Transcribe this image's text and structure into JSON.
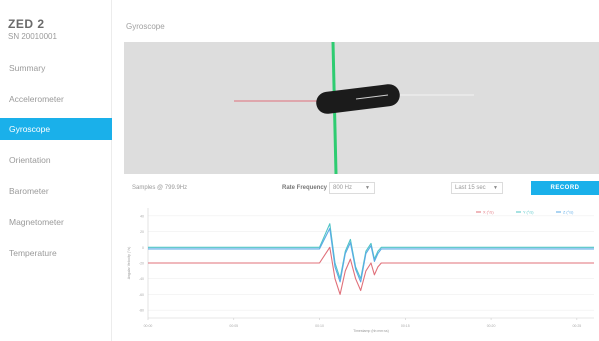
{
  "device": {
    "name": "ZED 2",
    "serial": "SN 20010001"
  },
  "nav": {
    "items": [
      {
        "label": "Summary"
      },
      {
        "label": "Accelerometer"
      },
      {
        "label": "Gyroscope",
        "active": true
      },
      {
        "label": "Orientation"
      },
      {
        "label": "Barometer"
      },
      {
        "label": "Magnetometer"
      },
      {
        "label": "Temperature"
      }
    ]
  },
  "page": {
    "title": "Gyroscope"
  },
  "toolbar": {
    "sampling_text": "Samples @ 799.9Hz",
    "rate_label": "Rate Frequency",
    "rate_value": "800 Hz",
    "range_value": "Last 15 sec",
    "record_label": "RECORD"
  },
  "colors": {
    "accent": "#1ab0ea",
    "x_axis": "#e0707a",
    "y_axis": "#4fc4c6",
    "z_axis": "#5aa9e6",
    "green_axis": "#2ecc71"
  },
  "chart_data": {
    "type": "line",
    "legend": [
      "X (°/s)",
      "Y (°/s)",
      "Z (°/s)"
    ],
    "legend_position": "top-right",
    "xlabel": "Timestamp (hh:mm:ss)",
    "ylabel": "Angular Velocity (°/s)",
    "x_ticks": [
      "00:00",
      "00:05",
      "00:10",
      "00:15",
      "00:20",
      "00:25"
    ],
    "y_ticks": [
      "40",
      "20",
      "0",
      "-20",
      "-40",
      "-60",
      "-80"
    ],
    "ylim": [
      -90,
      50
    ],
    "series": [
      {
        "name": "X (°/s)",
        "color": "#e0707a",
        "x": [
          0,
          10,
          10.6,
          10.9,
          11.2,
          11.5,
          11.8,
          12.1,
          12.4,
          12.7,
          13.0,
          13.2,
          13.4,
          13.6,
          15,
          26
        ],
        "values": [
          -20,
          -20,
          0,
          -40,
          -60,
          -30,
          -15,
          -40,
          -55,
          -30,
          -20,
          -35,
          -25,
          -20,
          -20,
          -20
        ]
      },
      {
        "name": "Y (°/s)",
        "color": "#4fc4c6",
        "x": [
          0,
          10,
          10.6,
          10.9,
          11.2,
          11.5,
          11.8,
          12.1,
          12.4,
          12.7,
          13.0,
          13.2,
          13.4,
          13.6,
          15,
          26
        ],
        "values": [
          0,
          0,
          30,
          -20,
          -40,
          -5,
          10,
          -25,
          -40,
          -5,
          5,
          -15,
          -5,
          0,
          0,
          0
        ]
      },
      {
        "name": "Z (°/s)",
        "color": "#5aa9e6",
        "x": [
          0,
          10,
          10.6,
          10.9,
          11.2,
          11.5,
          11.8,
          12.1,
          12.4,
          12.7,
          13.0,
          13.2,
          13.4,
          13.6,
          15,
          26
        ],
        "values": [
          -2,
          -2,
          24,
          -25,
          -44,
          -8,
          6,
          -28,
          -44,
          -8,
          2,
          -18,
          -8,
          -2,
          -2,
          -2
        ]
      }
    ]
  }
}
